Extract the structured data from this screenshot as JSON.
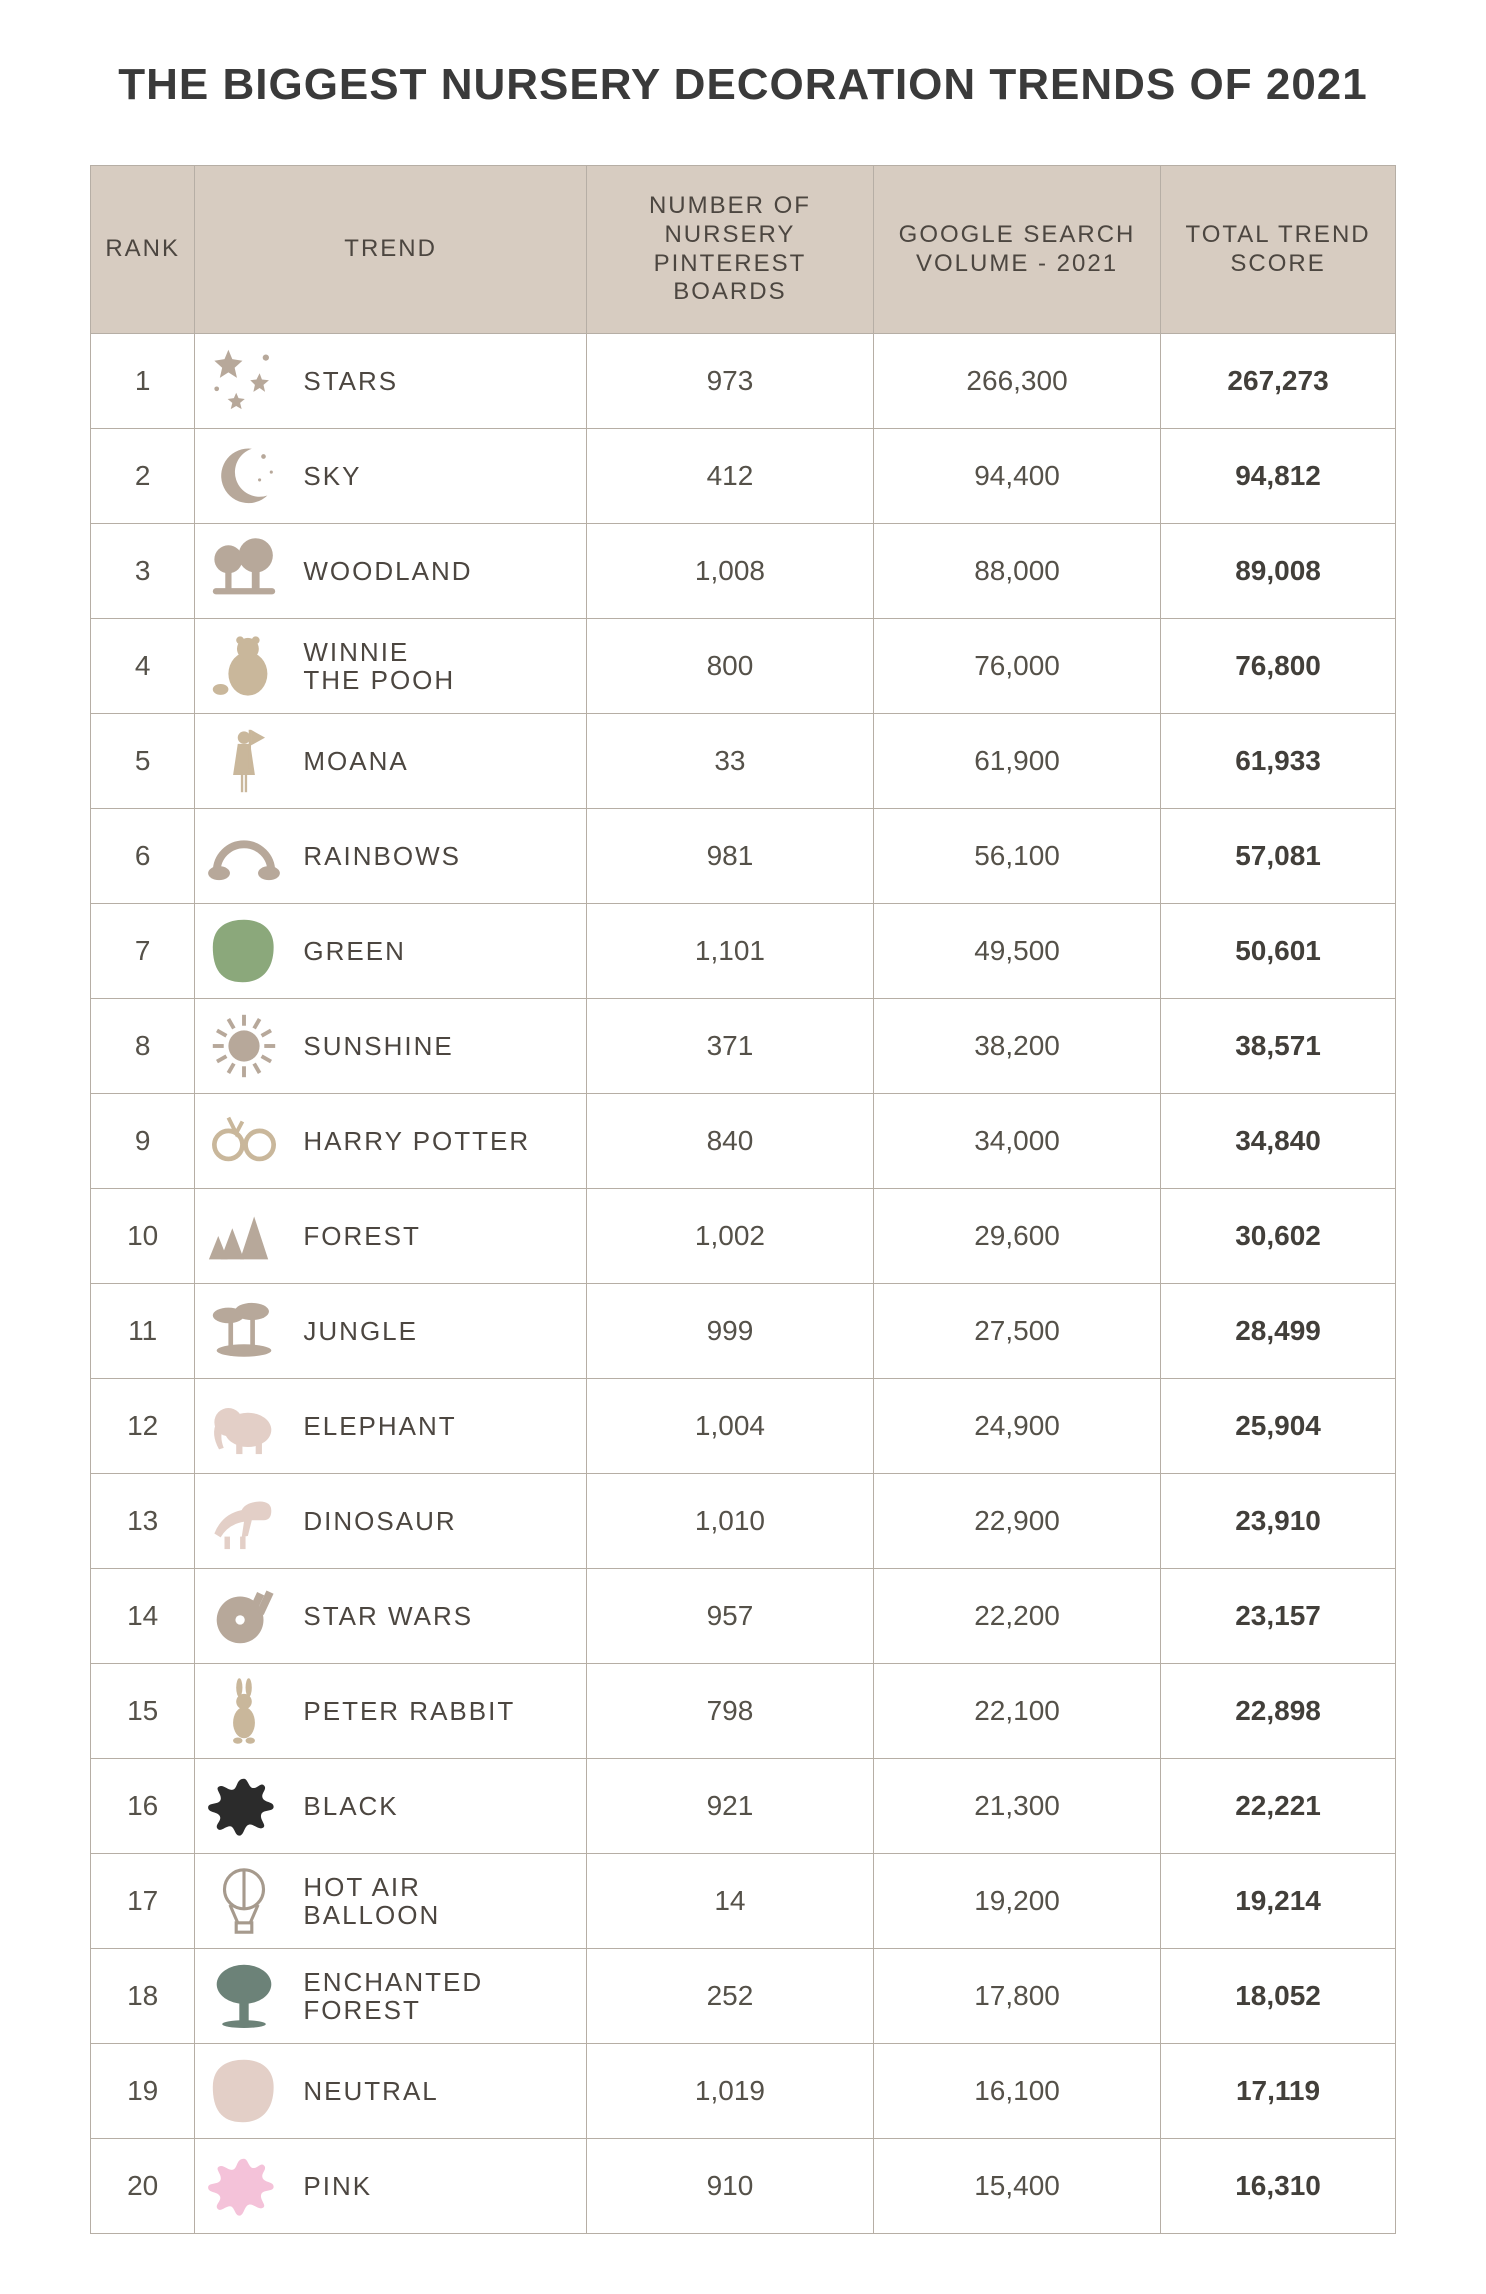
{
  "title": "THE BIGGEST NURSERY DECORATION TRENDS OF 2021",
  "columns": {
    "rank": "RANK",
    "trend": "TREND",
    "pinterest": "NUMBER OF NURSERY PINTEREST BOARDS",
    "google": "GOOGLE SEARCH VOLUME - 2021",
    "total": "TOTAL TREND SCORE"
  },
  "palette": {
    "taupe": "#b7a89a",
    "beige": "#c9b79b",
    "lightpink": "#e3cfc7",
    "green": "#8ba87b",
    "teal": "#6c8278",
    "black": "#2b2b2b",
    "stroke": "#a69a8d",
    "pink": "#f4c2d9"
  },
  "rows": [
    {
      "rank": "1",
      "name": "STARS",
      "icon": "stars",
      "color_key": "taupe",
      "pinterest": "973",
      "google": "266,300",
      "total": "267,273"
    },
    {
      "rank": "2",
      "name": "SKY",
      "icon": "moon",
      "color_key": "taupe",
      "pinterest": "412",
      "google": "94,400",
      "total": "94,812"
    },
    {
      "rank": "3",
      "name": "WOODLAND",
      "icon": "trees",
      "color_key": "taupe",
      "pinterest": "1,008",
      "google": "88,000",
      "total": "89,008"
    },
    {
      "rank": "4",
      "name": "WINNIE\nTHE POOH",
      "icon": "pooh",
      "color_key": "beige",
      "pinterest": "800",
      "google": "76,000",
      "total": "76,800"
    },
    {
      "rank": "5",
      "name": "MOANA",
      "icon": "moana",
      "color_key": "beige",
      "pinterest": "33",
      "google": "61,900",
      "total": "61,933"
    },
    {
      "rank": "6",
      "name": "RAINBOWS",
      "icon": "rainbow",
      "color_key": "taupe",
      "pinterest": "981",
      "google": "56,100",
      "total": "57,081"
    },
    {
      "rank": "7",
      "name": "GREEN",
      "icon": "blob",
      "color_key": "green",
      "pinterest": "1,101",
      "google": "49,500",
      "total": "50,601"
    },
    {
      "rank": "8",
      "name": "SUNSHINE",
      "icon": "sun",
      "color_key": "taupe",
      "pinterest": "371",
      "google": "38,200",
      "total": "38,571"
    },
    {
      "rank": "9",
      "name": "HARRY POTTER",
      "icon": "glasses",
      "color_key": "beige",
      "pinterest": "840",
      "google": "34,000",
      "total": "34,840"
    },
    {
      "rank": "10",
      "name": "FOREST",
      "icon": "forest",
      "color_key": "taupe",
      "pinterest": "1,002",
      "google": "29,600",
      "total": "30,602"
    },
    {
      "rank": "11",
      "name": "JUNGLE",
      "icon": "jungle",
      "color_key": "taupe",
      "pinterest": "999",
      "google": "27,500",
      "total": "28,499"
    },
    {
      "rank": "12",
      "name": "ELEPHANT",
      "icon": "elephant",
      "color_key": "lightpink",
      "pinterest": "1,004",
      "google": "24,900",
      "total": "25,904"
    },
    {
      "rank": "13",
      "name": "DINOSAUR",
      "icon": "dino",
      "color_key": "lightpink",
      "pinterest": "1,010",
      "google": "22,900",
      "total": "23,910"
    },
    {
      "rank": "14",
      "name": "STAR WARS",
      "icon": "falcon",
      "color_key": "taupe",
      "pinterest": "957",
      "google": "22,200",
      "total": "23,157"
    },
    {
      "rank": "15",
      "name": "PETER RABBIT",
      "icon": "rabbit",
      "color_key": "beige",
      "pinterest": "798",
      "google": "22,100",
      "total": "22,898"
    },
    {
      "rank": "16",
      "name": "BLACK",
      "icon": "splat",
      "color_key": "black",
      "pinterest": "921",
      "google": "21,300",
      "total": "22,221"
    },
    {
      "rank": "17",
      "name": "HOT AIR\nBALLOON",
      "icon": "balloon",
      "color_key": "stroke",
      "pinterest": "14",
      "google": "19,200",
      "total": "19,214"
    },
    {
      "rank": "18",
      "name": "ENCHANTED\nFOREST",
      "icon": "bigtree",
      "color_key": "teal",
      "pinterest": "252",
      "google": "17,800",
      "total": "18,052"
    },
    {
      "rank": "19",
      "name": "NEUTRAL",
      "icon": "blob",
      "color_key": "lightpink",
      "pinterest": "1,019",
      "google": "16,100",
      "total": "17,119"
    },
    {
      "rank": "20",
      "name": "PINK",
      "icon": "splat",
      "color_key": "pink",
      "pinterest": "910",
      "google": "15,400",
      "total": "16,310"
    }
  ]
}
